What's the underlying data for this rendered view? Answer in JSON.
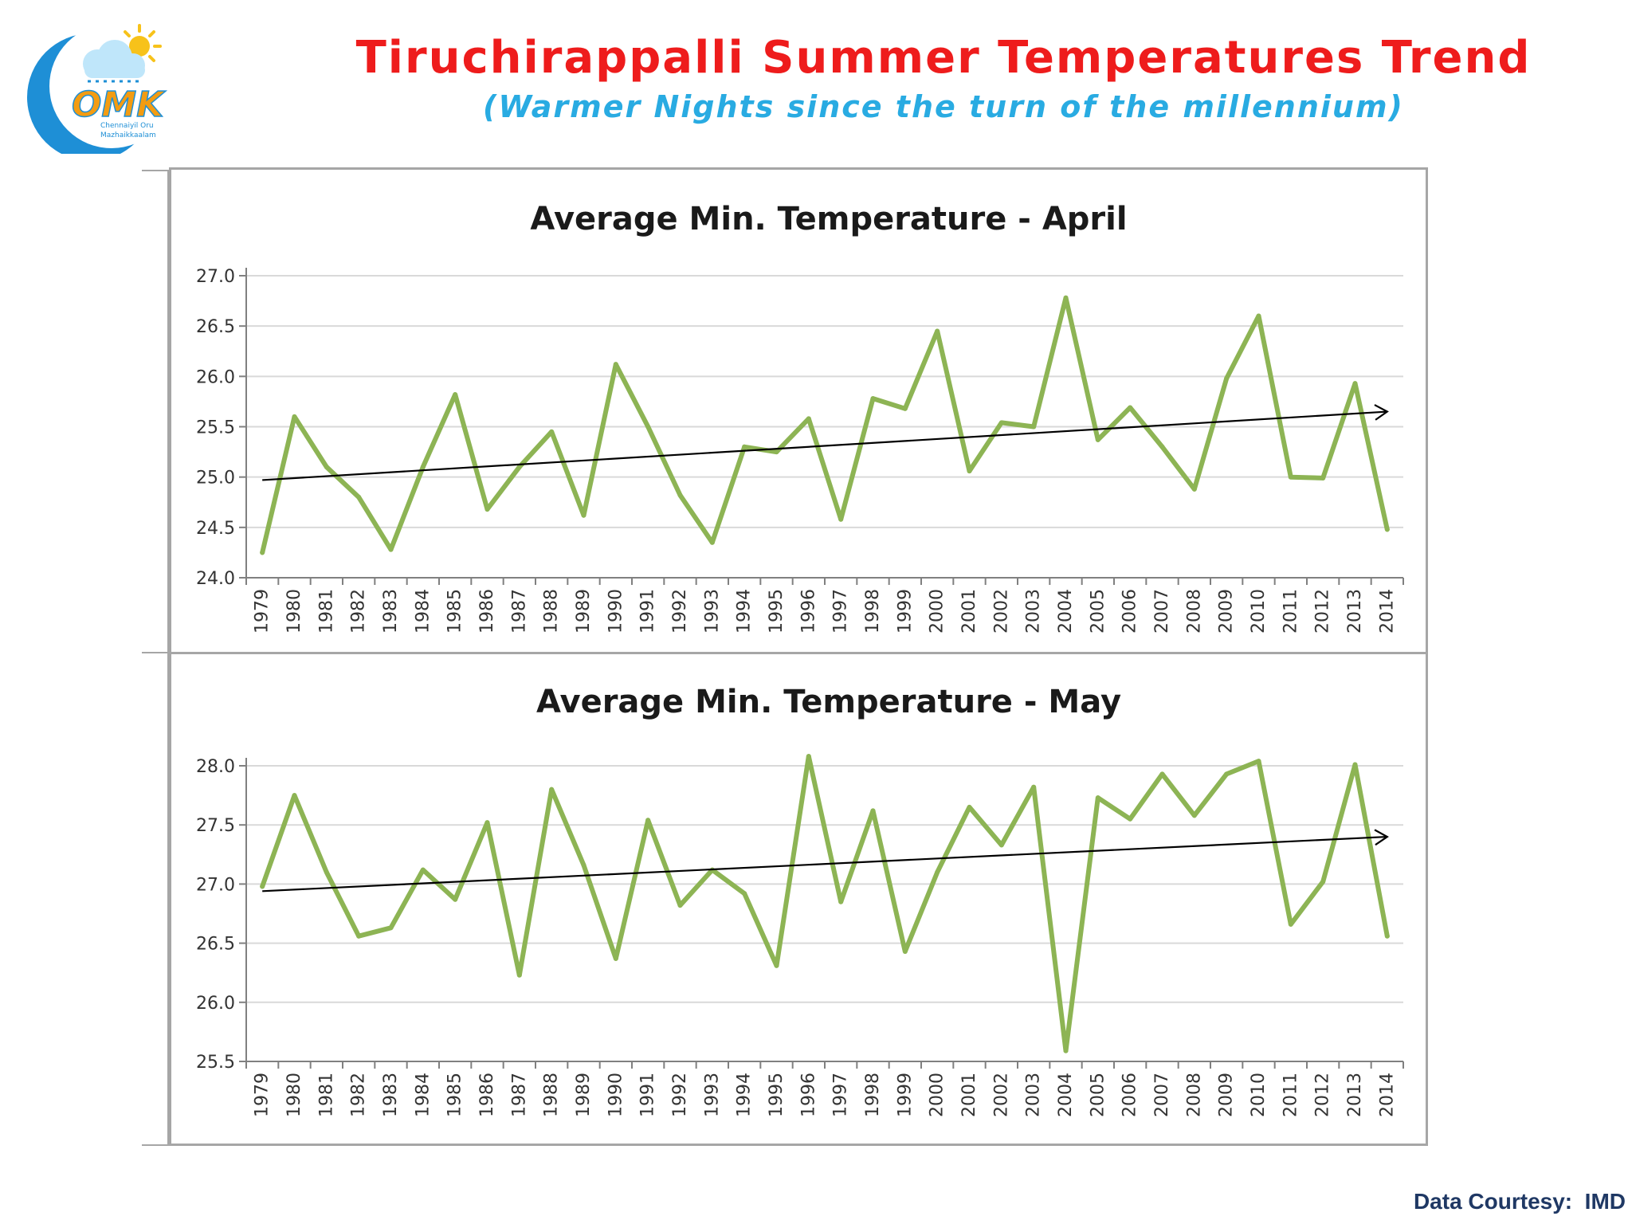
{
  "header": {
    "title": "Tiruchirappalli Summer Temperatures Trend",
    "subtitle": "(Warmer Nights since the turn of the millennium)",
    "title_color": "#ee1c1c",
    "subtitle_color": "#29abe2"
  },
  "logo": {
    "text": "OMK",
    "tagline_1": "Chennaiyil Oru",
    "tagline_2": "Mazhaikkaalam",
    "colors": {
      "moon": "#1e8fd6",
      "cloud": "#bfe6fa",
      "sun": "#f7c21a",
      "text": "#f39c12"
    }
  },
  "footer": {
    "credit": "Data Courtesy:  IMD"
  },
  "style": {
    "line_color": "#8db454",
    "trend_color": "#000000",
    "grid_color": "#d9d9d9"
  },
  "chart_data": [
    {
      "type": "line",
      "title": "Average Min. Temperature - April",
      "ylim": [
        24.0,
        27.0
      ],
      "yticks": [
        "24.0",
        "24.5",
        "25.0",
        "25.5",
        "26.0",
        "26.5",
        "27.0"
      ],
      "grid": true,
      "legend": "none",
      "categories": [
        "1979",
        "1980",
        "1981",
        "1982",
        "1983",
        "1984",
        "1985",
        "1986",
        "1987",
        "1988",
        "1989",
        "1990",
        "1991",
        "1992",
        "1993",
        "1994",
        "1995",
        "1996",
        "1997",
        "1998",
        "1999",
        "2000",
        "2001",
        "2002",
        "2003",
        "2004",
        "2005",
        "2006",
        "2007",
        "2008",
        "2009",
        "2010",
        "2011",
        "2012",
        "2013",
        "2014"
      ],
      "series": [
        {
          "values": [
            24.25,
            25.6,
            25.1,
            24.8,
            24.28,
            25.1,
            25.82,
            24.68,
            25.1,
            25.45,
            24.62,
            26.12,
            25.5,
            24.82,
            24.35,
            25.3,
            25.25,
            25.58,
            24.58,
            25.78,
            25.68,
            26.45,
            25.06,
            25.54,
            25.5,
            26.78,
            25.37,
            25.69,
            25.3,
            24.88,
            25.98,
            26.6,
            25.0,
            24.99,
            25.93,
            24.48
          ]
        }
      ],
      "trendline": {
        "type": "linear",
        "from": 24.97,
        "to": 25.65,
        "arrow": true
      }
    },
    {
      "type": "line",
      "title": "Average Min. Temperature - May",
      "ylim": [
        25.5,
        28.0
      ],
      "yticks": [
        "25.5",
        "26.0",
        "26.5",
        "27.0",
        "27.5",
        "28.0"
      ],
      "grid": true,
      "legend": "none",
      "categories": [
        "1979",
        "1980",
        "1981",
        "1982",
        "1983",
        "1984",
        "1985",
        "1986",
        "1987",
        "1988",
        "1989",
        "1990",
        "1991",
        "1992",
        "1993",
        "1994",
        "1995",
        "1996",
        "1997",
        "1998",
        "1999",
        "2000",
        "2001",
        "2002",
        "2003",
        "2004",
        "2005",
        "2006",
        "2007",
        "2008",
        "2009",
        "2010",
        "2011",
        "2012",
        "2013",
        "2014"
      ],
      "series": [
        {
          "values": [
            26.98,
            27.75,
            27.1,
            26.56,
            26.63,
            27.12,
            26.87,
            27.52,
            26.23,
            27.8,
            27.16,
            26.37,
            27.54,
            26.82,
            27.12,
            26.92,
            26.31,
            28.08,
            26.85,
            27.62,
            26.43,
            27.1,
            27.65,
            27.33,
            27.82,
            25.59,
            27.73,
            27.55,
            27.93,
            27.58,
            27.93,
            28.04,
            26.66,
            27.02,
            28.01,
            26.56
          ]
        }
      ],
      "trendline": {
        "type": "linear",
        "from": 26.94,
        "to": 27.4,
        "arrow": true
      }
    }
  ]
}
